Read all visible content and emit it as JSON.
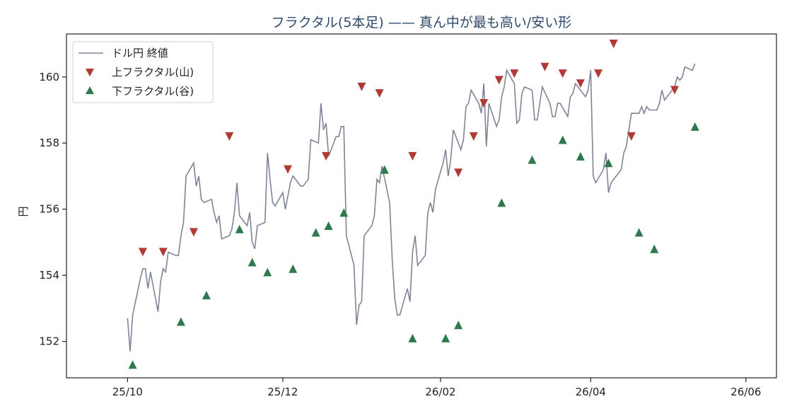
{
  "chart_data": {
    "type": "line",
    "title": "フラクタル(5本足) —— 真ん中が最も高い/安い形",
    "xlabel": "",
    "ylabel": "円",
    "grid": false,
    "legend_position": "top-left",
    "x_tick_labels": [
      "25/10",
      "25/12",
      "26/02",
      "26/04",
      "26/06"
    ],
    "x_tick_dates": [
      "2025-10-01",
      "2025-12-01",
      "2026-02-01",
      "2026-04-01",
      "2026-06-01"
    ],
    "x_range": [
      "2025-09-07",
      "2026-06-13"
    ],
    "y_ticks": [
      152,
      154,
      156,
      158,
      160
    ],
    "ylim": [
      150.9,
      161.3
    ],
    "series": [
      {
        "name": "ドル円 終値",
        "kind": "line",
        "color": "#7d8596",
        "points": [
          [
            "2025-10-01",
            152.7
          ],
          [
            "2025-10-02",
            151.7
          ],
          [
            "2025-10-03",
            152.8
          ],
          [
            "2025-10-06",
            153.9
          ],
          [
            "2025-10-07",
            154.2
          ],
          [
            "2025-10-08",
            154.2
          ],
          [
            "2025-10-09",
            153.6
          ],
          [
            "2025-10-10",
            154.1
          ],
          [
            "2025-10-13",
            152.9
          ],
          [
            "2025-10-14",
            153.8
          ],
          [
            "2025-10-15",
            154.2
          ],
          [
            "2025-10-16",
            154.1
          ],
          [
            "2025-10-17",
            154.7
          ],
          [
            "2025-10-20",
            154.6
          ],
          [
            "2025-10-21",
            154.6
          ],
          [
            "2025-10-22",
            155.2
          ],
          [
            "2025-10-23",
            155.6
          ],
          [
            "2025-10-24",
            157.0
          ],
          [
            "2025-10-27",
            157.4
          ],
          [
            "2025-10-28",
            156.7
          ],
          [
            "2025-10-29",
            157.0
          ],
          [
            "2025-10-30",
            156.3
          ],
          [
            "2025-10-31",
            156.2
          ],
          [
            "2025-11-03",
            156.3
          ],
          [
            "2025-11-04",
            155.9
          ],
          [
            "2025-11-05",
            155.6
          ],
          [
            "2025-11-06",
            155.8
          ],
          [
            "2025-11-07",
            155.1
          ],
          [
            "2025-11-10",
            155.2
          ],
          [
            "2025-11-11",
            155.4
          ],
          [
            "2025-11-12",
            155.9
          ],
          [
            "2025-11-13",
            156.8
          ],
          [
            "2025-11-14",
            155.8
          ],
          [
            "2025-11-17",
            155.5
          ],
          [
            "2025-11-18",
            155.9
          ],
          [
            "2025-11-19",
            155.0
          ],
          [
            "2025-11-20",
            154.8
          ],
          [
            "2025-11-21",
            155.5
          ],
          [
            "2025-11-24",
            155.6
          ],
          [
            "2025-11-25",
            157.7
          ],
          [
            "2025-11-26",
            156.9
          ],
          [
            "2025-11-27",
            156.2
          ],
          [
            "2025-11-28",
            156.1
          ],
          [
            "2025-12-01",
            156.5
          ],
          [
            "2025-12-02",
            156.0
          ],
          [
            "2025-12-03",
            156.4
          ],
          [
            "2025-12-04",
            156.8
          ],
          [
            "2025-12-05",
            157.0
          ],
          [
            "2025-12-08",
            156.7
          ],
          [
            "2025-12-09",
            156.7
          ],
          [
            "2025-12-10",
            156.8
          ],
          [
            "2025-12-11",
            156.9
          ],
          [
            "2025-12-12",
            158.1
          ],
          [
            "2025-12-15",
            158.0
          ],
          [
            "2025-12-16",
            159.2
          ],
          [
            "2025-12-17",
            158.4
          ],
          [
            "2025-12-18",
            158.6
          ],
          [
            "2025-12-19",
            157.6
          ],
          [
            "2025-12-22",
            158.2
          ],
          [
            "2025-12-23",
            158.2
          ],
          [
            "2025-12-24",
            158.5
          ],
          [
            "2025-12-25",
            158.5
          ],
          [
            "2025-12-26",
            155.2
          ],
          [
            "2025-12-29",
            154.3
          ],
          [
            "2025-12-30",
            152.5
          ],
          [
            "2025-12-31",
            153.1
          ],
          [
            "2026-01-01",
            153.2
          ],
          [
            "2026-01-02",
            155.2
          ],
          [
            "2026-01-05",
            155.5
          ],
          [
            "2026-01-06",
            155.8
          ],
          [
            "2026-01-07",
            156.9
          ],
          [
            "2026-01-08",
            156.8
          ],
          [
            "2026-01-09",
            157.3
          ],
          [
            "2026-01-12",
            156.2
          ],
          [
            "2026-01-13",
            154.5
          ],
          [
            "2026-01-14",
            153.3
          ],
          [
            "2026-01-15",
            152.8
          ],
          [
            "2026-01-16",
            152.8
          ],
          [
            "2026-01-19",
            153.6
          ],
          [
            "2026-01-20",
            153.2
          ],
          [
            "2026-01-21",
            154.7
          ],
          [
            "2026-01-22",
            155.2
          ],
          [
            "2026-01-23",
            154.3
          ],
          [
            "2026-01-26",
            154.6
          ],
          [
            "2026-01-27",
            155.9
          ],
          [
            "2026-01-28",
            156.2
          ],
          [
            "2026-01-29",
            155.9
          ],
          [
            "2026-01-30",
            156.6
          ],
          [
            "2026-02-02",
            157.4
          ],
          [
            "2026-02-03",
            157.8
          ],
          [
            "2026-02-04",
            157.0
          ],
          [
            "2026-02-05",
            157.5
          ],
          [
            "2026-02-06",
            158.4
          ],
          [
            "2026-02-09",
            157.8
          ],
          [
            "2026-02-10",
            158.1
          ],
          [
            "2026-02-11",
            159.1
          ],
          [
            "2026-02-12",
            159.2
          ],
          [
            "2026-02-13",
            159.6
          ],
          [
            "2026-02-16",
            159.2
          ],
          [
            "2026-02-17",
            158.9
          ],
          [
            "2026-02-18",
            159.8
          ],
          [
            "2026-02-19",
            157.9
          ],
          [
            "2026-02-20",
            159.2
          ],
          [
            "2026-02-23",
            158.5
          ],
          [
            "2026-02-24",
            158.7
          ],
          [
            "2026-02-25",
            159.4
          ],
          [
            "2026-02-26",
            159.7
          ],
          [
            "2026-02-27",
            160.2
          ],
          [
            "2026-03-02",
            159.8
          ],
          [
            "2026-03-03",
            158.6
          ],
          [
            "2026-03-04",
            158.7
          ],
          [
            "2026-03-05",
            159.5
          ],
          [
            "2026-03-06",
            159.7
          ],
          [
            "2026-03-09",
            159.6
          ],
          [
            "2026-03-10",
            158.7
          ],
          [
            "2026-03-11",
            158.7
          ],
          [
            "2026-03-12",
            159.2
          ],
          [
            "2026-03-13",
            159.7
          ],
          [
            "2026-03-16",
            159.2
          ],
          [
            "2026-03-17",
            158.8
          ],
          [
            "2026-03-18",
            158.8
          ],
          [
            "2026-03-19",
            159.2
          ],
          [
            "2026-03-20",
            159.2
          ],
          [
            "2026-03-23",
            158.8
          ],
          [
            "2026-03-24",
            159.4
          ],
          [
            "2026-03-25",
            159.5
          ],
          [
            "2026-03-26",
            159.8
          ],
          [
            "2026-03-27",
            159.7
          ],
          [
            "2026-03-30",
            159.4
          ],
          [
            "2026-03-31",
            159.6
          ],
          [
            "2026-04-01",
            160.2
          ],
          [
            "2026-04-02",
            157.0
          ],
          [
            "2026-04-03",
            156.8
          ],
          [
            "2026-04-06",
            157.2
          ],
          [
            "2026-04-07",
            157.7
          ],
          [
            "2026-04-08",
            156.5
          ],
          [
            "2026-04-09",
            156.8
          ],
          [
            "2026-04-10",
            156.9
          ],
          [
            "2026-04-13",
            157.2
          ],
          [
            "2026-04-14",
            157.7
          ],
          [
            "2026-04-15",
            157.9
          ],
          [
            "2026-04-16",
            158.4
          ],
          [
            "2026-04-17",
            158.9
          ],
          [
            "2026-04-20",
            158.9
          ],
          [
            "2026-04-21",
            159.1
          ],
          [
            "2026-04-22",
            158.9
          ],
          [
            "2026-04-23",
            159.1
          ],
          [
            "2026-04-24",
            159.0
          ],
          [
            "2026-04-27",
            159.0
          ],
          [
            "2026-04-28",
            159.2
          ],
          [
            "2026-04-29",
            159.6
          ],
          [
            "2026-04-30",
            159.3
          ],
          [
            "2026-05-01",
            159.4
          ],
          [
            "2026-05-04",
            159.7
          ],
          [
            "2026-05-05",
            160.0
          ],
          [
            "2026-05-06",
            159.9
          ],
          [
            "2026-05-07",
            160.0
          ],
          [
            "2026-05-08",
            160.3
          ],
          [
            "2026-05-11",
            160.2
          ],
          [
            "2026-05-12",
            160.4
          ]
        ]
      },
      {
        "name": "上フラクタル(山)",
        "kind": "scatter",
        "marker": "triangle-down",
        "color": "#b13a34",
        "points": [
          [
            "2025-10-07",
            154.7
          ],
          [
            "2025-10-15",
            154.7
          ],
          [
            "2025-10-27",
            155.3
          ],
          [
            "2025-11-10",
            158.2
          ],
          [
            "2025-12-03",
            157.2
          ],
          [
            "2025-12-18",
            157.6
          ],
          [
            "2026-01-01",
            159.7
          ],
          [
            "2026-01-08",
            159.5
          ],
          [
            "2026-01-21",
            157.6
          ],
          [
            "2026-02-08",
            157.1
          ],
          [
            "2026-02-14",
            158.2
          ],
          [
            "2026-02-18",
            159.2
          ],
          [
            "2026-02-24",
            159.9
          ],
          [
            "2026-03-02",
            160.1
          ],
          [
            "2026-03-14",
            160.3
          ],
          [
            "2026-03-21",
            160.1
          ],
          [
            "2026-03-28",
            159.8
          ],
          [
            "2026-04-04",
            160.1
          ],
          [
            "2026-04-10",
            161.0
          ],
          [
            "2026-04-17",
            158.2
          ],
          [
            "2026-05-04",
            159.6
          ]
        ]
      },
      {
        "name": "下フラクタル(谷)",
        "kind": "scatter",
        "marker": "triangle-up",
        "color": "#2e7a4e",
        "points": [
          [
            "2025-10-03",
            151.3
          ],
          [
            "2025-10-22",
            152.6
          ],
          [
            "2025-11-01",
            153.4
          ],
          [
            "2025-11-14",
            155.4
          ],
          [
            "2025-11-19",
            154.4
          ],
          [
            "2025-11-25",
            154.1
          ],
          [
            "2025-12-05",
            154.2
          ],
          [
            "2025-12-14",
            155.3
          ],
          [
            "2025-12-19",
            155.5
          ],
          [
            "2025-12-25",
            155.9
          ],
          [
            "2026-01-10",
            157.2
          ],
          [
            "2026-01-21",
            152.1
          ],
          [
            "2026-02-03",
            152.1
          ],
          [
            "2026-02-08",
            152.5
          ],
          [
            "2026-02-25",
            156.2
          ],
          [
            "2026-03-09",
            157.5
          ],
          [
            "2026-03-21",
            158.1
          ],
          [
            "2026-03-28",
            157.6
          ],
          [
            "2026-04-08",
            157.4
          ],
          [
            "2026-04-20",
            155.3
          ],
          [
            "2026-04-26",
            154.8
          ],
          [
            "2026-05-12",
            158.5
          ]
        ]
      }
    ]
  }
}
